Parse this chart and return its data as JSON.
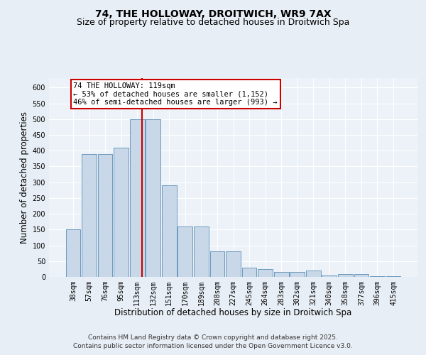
{
  "title_line1": "74, THE HOLLOWAY, DROITWICH, WR9 7AX",
  "title_line2": "Size of property relative to detached houses in Droitwich Spa",
  "xlabel": "Distribution of detached houses by size in Droitwich Spa",
  "ylabel": "Number of detached properties",
  "categories": [
    "38sqm",
    "57sqm",
    "76sqm",
    "95sqm",
    "113sqm",
    "132sqm",
    "151sqm",
    "170sqm",
    "189sqm",
    "208sqm",
    "227sqm",
    "245sqm",
    "264sqm",
    "283sqm",
    "302sqm",
    "321sqm",
    "340sqm",
    "358sqm",
    "377sqm",
    "396sqm",
    "415sqm"
  ],
  "values": [
    150,
    390,
    390,
    410,
    500,
    500,
    290,
    160,
    160,
    80,
    80,
    30,
    25,
    15,
    15,
    20,
    5,
    10,
    8,
    3,
    3
  ],
  "bar_color": "#c8d8e8",
  "bar_edge_color": "#5b8db8",
  "vline_color": "#cc0000",
  "annotation_text": "74 THE HOLLOWAY: 119sqm\n← 53% of detached houses are smaller (1,152)\n46% of semi-detached houses are larger (993) →",
  "annotation_box_color": "#cc0000",
  "ylim": [
    0,
    630
  ],
  "yticks": [
    0,
    50,
    100,
    150,
    200,
    250,
    300,
    350,
    400,
    450,
    500,
    550,
    600
  ],
  "footer": "Contains HM Land Registry data © Crown copyright and database right 2025.\nContains public sector information licensed under the Open Government Licence v3.0.",
  "bg_color": "#e8eef5",
  "plot_bg_color": "#edf2f8",
  "grid_color": "#ffffff",
  "title_fontsize": 10,
  "subtitle_fontsize": 9,
  "axis_label_fontsize": 8.5,
  "tick_fontsize": 7,
  "footer_fontsize": 6.5,
  "ann_fontsize": 7.5
}
